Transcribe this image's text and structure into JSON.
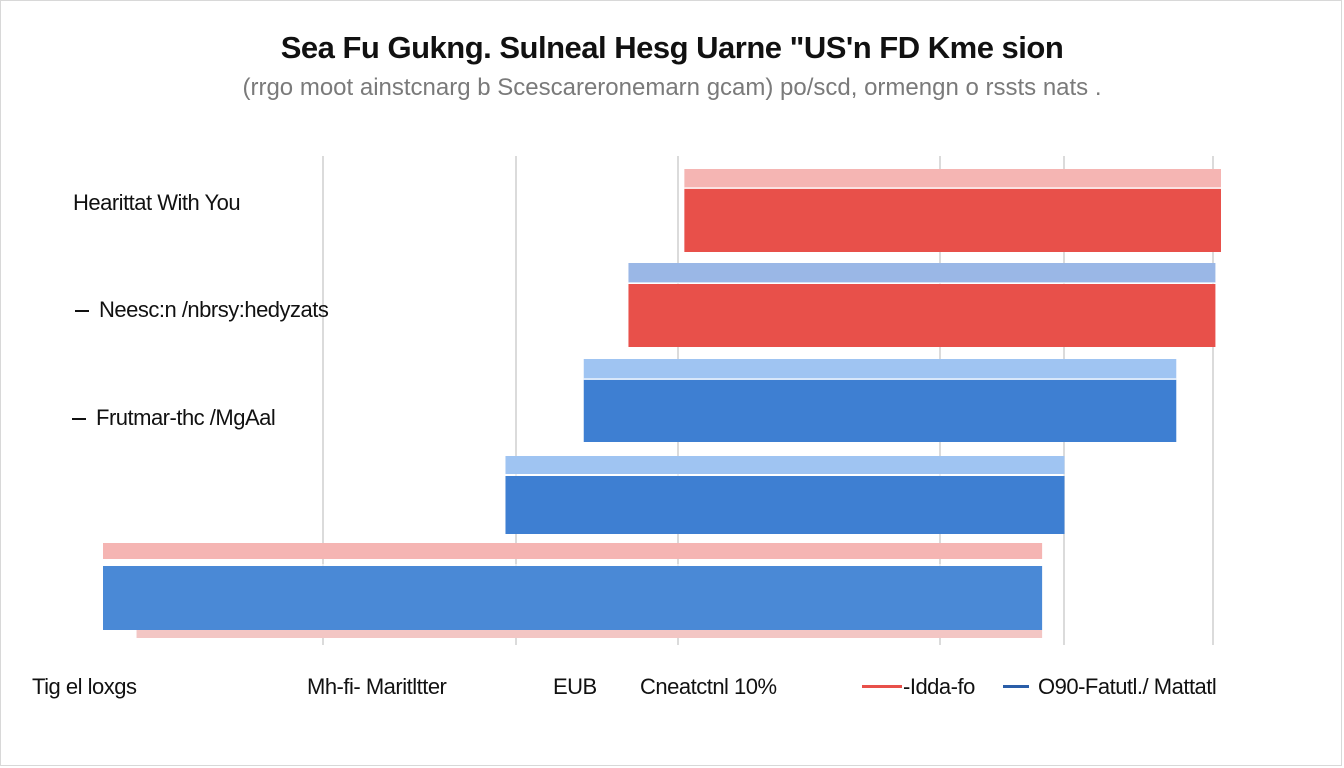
{
  "chart_data": {
    "type": "bar",
    "orientation": "horizontal",
    "title": "Sea Fu Gukng. Sulneal Hesg Uarne \"US'n FD Kme sion",
    "subtitle": "(rrgo moot ainstcnarg  b  Scescareronemarn  gcam)  po/scd, ormengn  o  rssts  nats  .",
    "categories": [
      "Hearittat With You",
      "Neesc:n /nbrsy:hedyzats",
      "Frutmar-thc /MgAal",
      "",
      ""
    ],
    "bars": [
      {
        "start": 0.52,
        "end": 1.0,
        "fill": "#e8504a",
        "band": "#f5b5b3"
      },
      {
        "start": 0.47,
        "end": 0.995,
        "fill": "#e8504a",
        "band": "#9ab7e6"
      },
      {
        "start": 0.43,
        "end": 0.96,
        "fill": "#3e7fd2",
        "band": "#9fc4f2"
      },
      {
        "start": 0.36,
        "end": 0.86,
        "fill": "#3e7fd2",
        "band": "#9fc4f2"
      },
      {
        "start": 0.0,
        "end": 0.84,
        "fill": "#4a89d6",
        "band": "#f5b5b3"
      }
    ],
    "legend": [
      {
        "label": "Tig el loxgs"
      },
      {
        "label": "Mh-fi- Maritltter"
      },
      {
        "label": "EUB"
      },
      {
        "label": "Cneatctnl 10%"
      },
      {
        "label": "-Idda-fo",
        "color": "#e8504a"
      },
      {
        "label": "O90-Fatutl./ Mattatl",
        "color": "#2a5ea8"
      }
    ],
    "grid": true,
    "legend_position": "bottom"
  }
}
